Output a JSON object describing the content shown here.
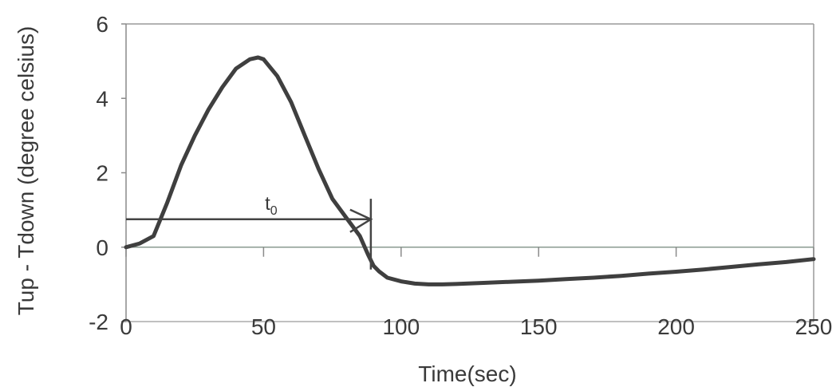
{
  "chart_data": {
    "type": "line",
    "title": "",
    "xlabel": "Time(sec)",
    "ylabel": "Tup - Tdown (degree celsius)",
    "xlim": [
      0,
      250
    ],
    "ylim": [
      -2,
      6
    ],
    "x_ticks": [
      "0",
      "50",
      "100",
      "150",
      "200",
      "250"
    ],
    "y_ticks": [
      "6",
      "4",
      "2",
      "0",
      "-2"
    ],
    "grid": false,
    "legend": "none",
    "series": [
      {
        "color": "#3f3f3f",
        "x": [
          0,
          5,
          10,
          15,
          20,
          25,
          30,
          35,
          40,
          45,
          48,
          50,
          55,
          60,
          65,
          70,
          75,
          80,
          85,
          88,
          90,
          92,
          95,
          100,
          105,
          110,
          115,
          120,
          130,
          140,
          150,
          160,
          170,
          180,
          190,
          200,
          210,
          220,
          230,
          240,
          250
        ],
        "y": [
          0.0,
          0.1,
          0.3,
          1.2,
          2.2,
          3.0,
          3.7,
          4.3,
          4.8,
          5.05,
          5.1,
          5.05,
          4.6,
          3.9,
          3.0,
          2.1,
          1.3,
          0.8,
          0.3,
          -0.2,
          -0.5,
          -0.65,
          -0.82,
          -0.92,
          -0.98,
          -1.0,
          -1.0,
          -0.99,
          -0.96,
          -0.93,
          -0.9,
          -0.86,
          -0.82,
          -0.77,
          -0.71,
          -0.66,
          -0.6,
          -0.53,
          -0.46,
          -0.4,
          -0.32
        ]
      }
    ],
    "annotations": {
      "t0_label": "t",
      "t0_subscript": "0",
      "t0_arrow": {
        "x_start": 0,
        "x_end": 89,
        "y": 0.75
      }
    }
  }
}
